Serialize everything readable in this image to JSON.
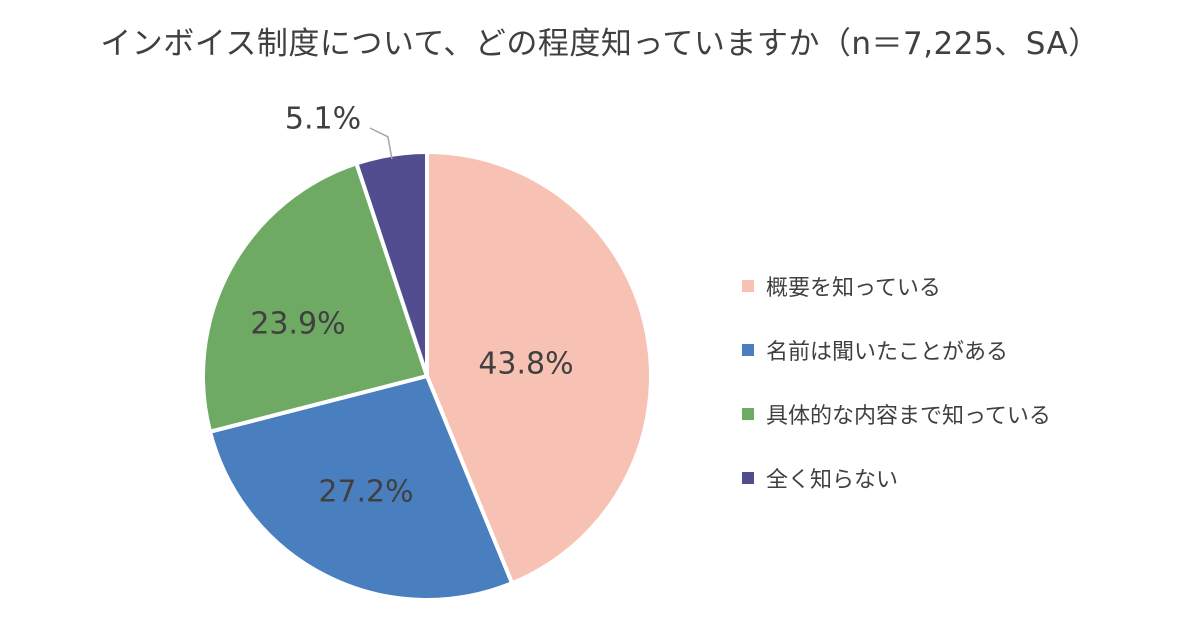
{
  "chart_data": {
    "type": "pie",
    "title": "インボイス制度について、どの程度知っていますか（n＝7,225、SA）",
    "slices": [
      {
        "name": "概要を知っている",
        "value": 43.8,
        "label": "43.8%",
        "color": "#F7C1B3"
      },
      {
        "name": "名前は聞いたことがある",
        "value": 27.2,
        "label": "27.2%",
        "color": "#4A7FBF"
      },
      {
        "name": "具体的な内容まで知っている",
        "value": 23.9,
        "label": "23.9%",
        "color": "#6EAA63"
      },
      {
        "name": "全く知らない",
        "value": 5.1,
        "label": "5.1%",
        "color": "#514D8E"
      }
    ],
    "legend_position": "right"
  }
}
